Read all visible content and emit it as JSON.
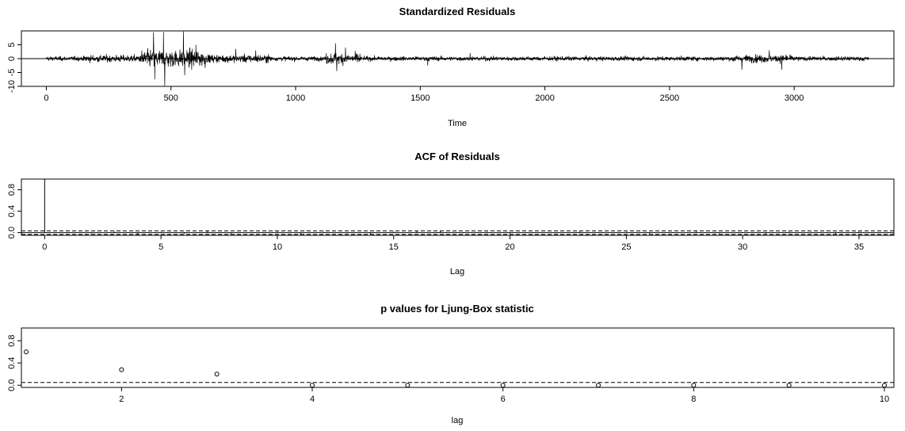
{
  "chart_data": [
    {
      "type": "line",
      "title": "Standardized Residuals",
      "xlabel": "Time",
      "ylabel": "",
      "xlim": [
        -100,
        3400
      ],
      "ylim": [
        -10,
        10
      ],
      "x_ticks": [
        "0",
        "500",
        "1000",
        "1500",
        "2000",
        "2500",
        "3000"
      ],
      "y_ticks": [
        "-10",
        "-5",
        "0",
        "5"
      ],
      "reference_line": 0,
      "n_points": 3300,
      "series": [
        {
          "values_description": "residual spikes (time, value)",
          "spikes": [
            [
              430,
              9.5
            ],
            [
              435,
              -7.5
            ],
            [
              470,
              9.6
            ],
            [
              475,
              -9.8
            ],
            [
              550,
              9.8
            ],
            [
              555,
              -6
            ],
            [
              600,
              5
            ],
            [
              760,
              3.5
            ],
            [
              840,
              3
            ],
            [
              1160,
              5.5
            ],
            [
              1165,
              -4.5
            ],
            [
              1200,
              4
            ],
            [
              1530,
              -2.5
            ],
            [
              1700,
              2
            ],
            [
              2790,
              -4
            ],
            [
              2900,
              3
            ],
            [
              2950,
              -4
            ]
          ]
        }
      ]
    },
    {
      "type": "bar",
      "title": "ACF of Residuals",
      "xlabel": "Lag",
      "ylabel": "",
      "xlim": [
        -1,
        36.5
      ],
      "ylim": [
        -0.05,
        1
      ],
      "x_ticks": [
        "0",
        "5",
        "10",
        "15",
        "20",
        "25",
        "30",
        "35"
      ],
      "y_ticks": [
        "0.0",
        "0.4",
        "0.8"
      ],
      "confidence_bound": 0.034,
      "x": [
        0,
        1,
        2,
        3,
        4,
        5,
        6,
        7,
        8,
        9,
        10,
        11,
        12,
        13,
        14,
        15,
        16,
        17,
        18,
        19,
        20,
        21,
        22,
        23,
        24,
        25,
        26,
        27,
        28,
        29,
        30,
        31,
        32,
        33,
        34,
        35
      ],
      "values": [
        1.0,
        0.01,
        -0.015,
        0.02,
        -0.03,
        0.015,
        -0.02,
        0.03,
        -0.025,
        0.01,
        0.02,
        -0.03,
        0.015,
        -0.01,
        -0.035,
        0.02,
        0.025,
        0.03,
        -0.01,
        0.015,
        -0.02,
        0.01,
        -0.015,
        0.02,
        -0.01,
        0.015,
        -0.02,
        0.01,
        0.02,
        -0.015,
        0.01,
        -0.02,
        0.015,
        -0.01,
        -0.025,
        0.02
      ]
    },
    {
      "type": "scatter",
      "title": "p values for Ljung-Box statistic",
      "xlabel": "lag",
      "ylabel": "",
      "xlim": [
        0.95,
        10.1
      ],
      "ylim": [
        -0.04,
        1.03
      ],
      "x_ticks": [
        "2",
        "4",
        "6",
        "8",
        "10"
      ],
      "y_ticks": [
        "0.0",
        "0.4",
        "0.8"
      ],
      "reference_line": 0.05,
      "x": [
        1,
        2,
        3,
        4,
        5,
        6,
        7,
        8,
        9,
        10
      ],
      "values": [
        0.6,
        0.28,
        0.2,
        0.0,
        0.0,
        0.0,
        0.0,
        0.0,
        0.0,
        0.0
      ]
    }
  ]
}
